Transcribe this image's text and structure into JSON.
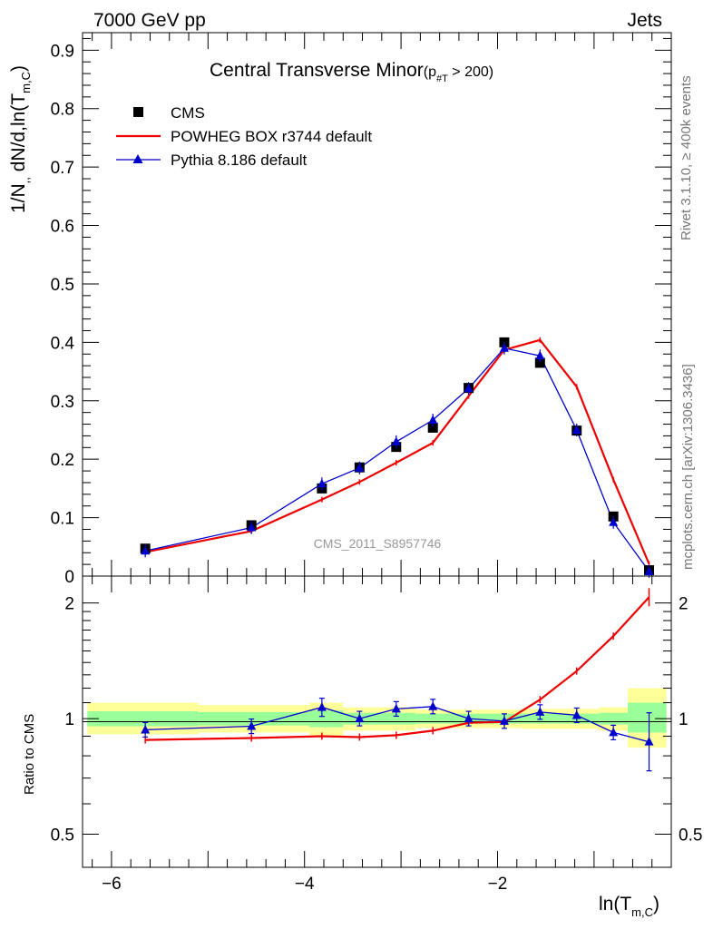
{
  "header": {
    "left": "7000 GeV pp",
    "right": "Jets"
  },
  "side_labels": {
    "rivet": "Rivet 3.1.10, ≥ 400k events",
    "mcplots": "mcplots.cern.ch [arXiv:1306.3436]"
  },
  "watermark": "CMS_2011_S8957746",
  "plot_title": {
    "main": "Central Transverse Minor",
    "cut_prefix": "(p",
    "cut_sub": "#T",
    "cut_suffix": " > 200)"
  },
  "y_label": {
    "prefix": "1/N",
    "mid": " dN/d,ln(T",
    "sub": "m,C",
    "suffix": ")"
  },
  "x_label": {
    "prefix": "ln(T",
    "sub": "m,C",
    "suffix": ")"
  },
  "ratio_label": "Ratio to CMS",
  "legend": {
    "cms": "CMS",
    "powheg": "POWHEG BOX r3744 default",
    "pythia": "Pythia 8.186 default"
  },
  "colors": {
    "cms": "#000000",
    "powheg": "#ee0000",
    "pythia": "#0000cc",
    "band_inner": "#99ff99",
    "band_outer": "#ffff99"
  },
  "chart_data": [
    {
      "type": "line",
      "panel": "main",
      "xlim": [
        -6.3,
        -0.2
      ],
      "ylim": [
        0,
        0.93
      ],
      "yticks": [
        0,
        0.1,
        0.2,
        0.3,
        0.4,
        0.5,
        0.6,
        0.7,
        0.8,
        0.9
      ],
      "ytick_labels": [
        "0",
        "0.1",
        "0.2",
        "0.3",
        "0.4",
        "0.5",
        "0.6",
        "0.7",
        "0.8",
        "0.9"
      ],
      "series": [
        {
          "name": "CMS",
          "style": "markers",
          "x": [
            -5.65,
            -4.55,
            -3.82,
            -3.43,
            -3.05,
            -2.67,
            -2.3,
            -1.93,
            -1.56,
            -1.18,
            -0.8,
            -0.43
          ],
          "y": [
            0.047,
            0.087,
            0.15,
            0.186,
            0.221,
            0.254,
            0.322,
            0.4,
            0.365,
            0.249,
            0.102,
            0.01
          ]
        },
        {
          "name": "POWHEG BOX r3744 default",
          "style": "line",
          "x": [
            -5.65,
            -4.55,
            -3.82,
            -3.43,
            -3.05,
            -2.67,
            -2.3,
            -1.93,
            -1.56,
            -1.18,
            -0.8,
            -0.43
          ],
          "y": [
            0.041,
            0.077,
            0.131,
            0.161,
            0.194,
            0.228,
            0.308,
            0.387,
            0.404,
            0.324,
            0.165,
            0.021
          ]
        },
        {
          "name": "Pythia 8.186 default",
          "style": "line+markers",
          "x": [
            -5.65,
            -4.55,
            -3.82,
            -3.43,
            -3.05,
            -2.67,
            -2.3,
            -1.93,
            -1.56,
            -1.18,
            -0.8,
            -0.43
          ],
          "y": [
            0.043,
            0.083,
            0.158,
            0.185,
            0.23,
            0.267,
            0.321,
            0.39,
            0.377,
            0.25,
            0.092,
            0.008
          ]
        }
      ]
    },
    {
      "type": "line",
      "panel": "ratio",
      "title": "Ratio to CMS",
      "xlabel": "ln(T_m,C)",
      "xlim": [
        -6.3,
        -0.2
      ],
      "ylim": [
        0.41,
        2.35
      ],
      "log_y": true,
      "xticks": [
        -6,
        -4,
        -2
      ],
      "xtick_labels": [
        "−6",
        "−4",
        "−2"
      ],
      "yticks": [
        0.5,
        1,
        2
      ],
      "ytick_labels": [
        "0.5",
        "1",
        "2"
      ],
      "bands": [
        {
          "x0": -6.25,
          "x1": -5.1,
          "inner": [
            0.955,
            1.045
          ],
          "outer": [
            0.91,
            1.1
          ]
        },
        {
          "x0": -5.1,
          "x1": -3.95,
          "inner": [
            0.96,
            1.04
          ],
          "outer": [
            0.92,
            1.085
          ]
        },
        {
          "x0": -3.95,
          "x1": -3.6,
          "inner": [
            0.95,
            1.05
          ],
          "outer": [
            0.9,
            1.1
          ]
        },
        {
          "x0": -3.6,
          "x1": -2.85,
          "inner": [
            0.965,
            1.035
          ],
          "outer": [
            0.93,
            1.07
          ]
        },
        {
          "x0": -2.85,
          "x1": -1.75,
          "inner": [
            0.97,
            1.03
          ],
          "outer": [
            0.945,
            1.055
          ]
        },
        {
          "x0": -1.75,
          "x1": -0.95,
          "inner": [
            0.97,
            1.03
          ],
          "outer": [
            0.94,
            1.06
          ]
        },
        {
          "x0": -0.95,
          "x1": -0.65,
          "inner": [
            0.965,
            1.035
          ],
          "outer": [
            0.93,
            1.07
          ]
        },
        {
          "x0": -0.65,
          "x1": -0.25,
          "inner": [
            0.92,
            1.1
          ],
          "outer": [
            0.84,
            1.2
          ]
        }
      ],
      "series": [
        {
          "name": "POWHEG BOX r3744 default",
          "x": [
            -5.65,
            -4.55,
            -3.82,
            -3.43,
            -3.05,
            -2.67,
            -2.3,
            -1.93,
            -1.56,
            -1.18,
            -0.8,
            -0.43
          ],
          "y": [
            0.88,
            0.89,
            0.9,
            0.895,
            0.905,
            0.93,
            0.975,
            0.98,
            1.12,
            1.33,
            1.64,
            2.07
          ]
        },
        {
          "name": "Pythia 8.186 default",
          "x": [
            -5.65,
            -4.55,
            -3.82,
            -3.43,
            -3.05,
            -2.67,
            -2.3,
            -1.93,
            -1.56,
            -1.18,
            -0.8,
            -0.43
          ],
          "y": [
            0.935,
            0.955,
            1.07,
            1.0,
            1.06,
            1.075,
            1.0,
            0.985,
            1.04,
            1.02,
            0.92,
            0.87
          ]
        }
      ]
    }
  ]
}
